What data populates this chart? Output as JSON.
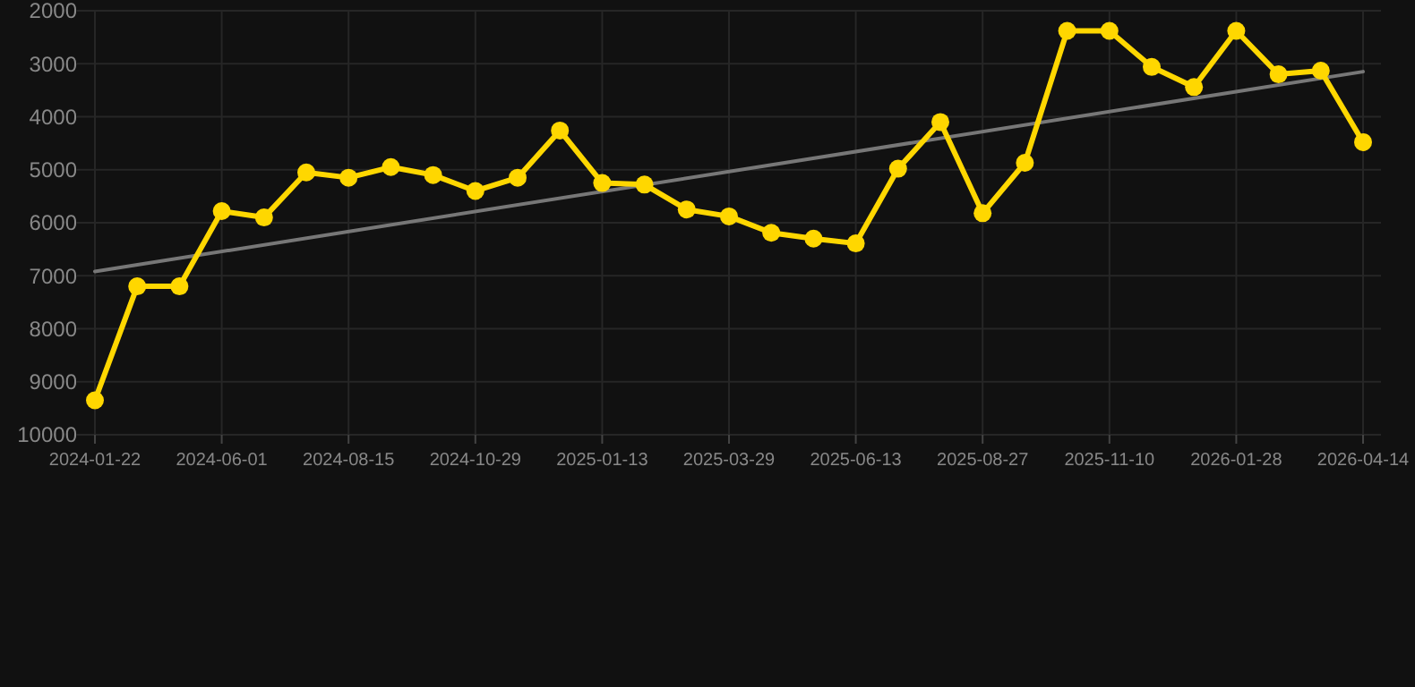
{
  "chart_data": {
    "type": "line",
    "categories": [
      "2024-01-22",
      null,
      null,
      "2024-06-01",
      null,
      null,
      "2024-08-15",
      null,
      null,
      "2024-10-29",
      null,
      null,
      "2025-01-13",
      null,
      null,
      "2025-03-29",
      null,
      null,
      "2025-06-13",
      null,
      null,
      "2025-08-27",
      null,
      null,
      "2025-11-10",
      null,
      null,
      "2026-01-28",
      null,
      null,
      "2026-04-14"
    ],
    "ylim": [
      10000,
      2000
    ],
    "yticks": [
      2000,
      3000,
      4000,
      5000,
      6000,
      7000,
      8000,
      9000,
      10000
    ],
    "grid": true,
    "marker": "circle",
    "line_style": "solid",
    "series": [
      {
        "color": "#ffd700",
        "values": [
          9350,
          7200,
          7200,
          5780,
          5900,
          5050,
          5150,
          4950,
          5100,
          5400,
          5150,
          4260,
          5250,
          5280,
          5750,
          5880,
          6190,
          6300,
          6390,
          4980,
          4100,
          5820,
          4870,
          2380,
          2380,
          3060,
          3440,
          2380,
          3200,
          3130,
          4480
        ]
      },
      {
        "type": "line",
        "color": "#777777",
        "marker": "none",
        "values": [
          6920,
          null,
          null,
          null,
          null,
          null,
          null,
          null,
          null,
          null,
          null,
          null,
          null,
          null,
          null,
          null,
          null,
          null,
          null,
          null,
          null,
          null,
          null,
          null,
          null,
          null,
          null,
          null,
          null,
          null,
          3150
        ]
      }
    ]
  }
}
